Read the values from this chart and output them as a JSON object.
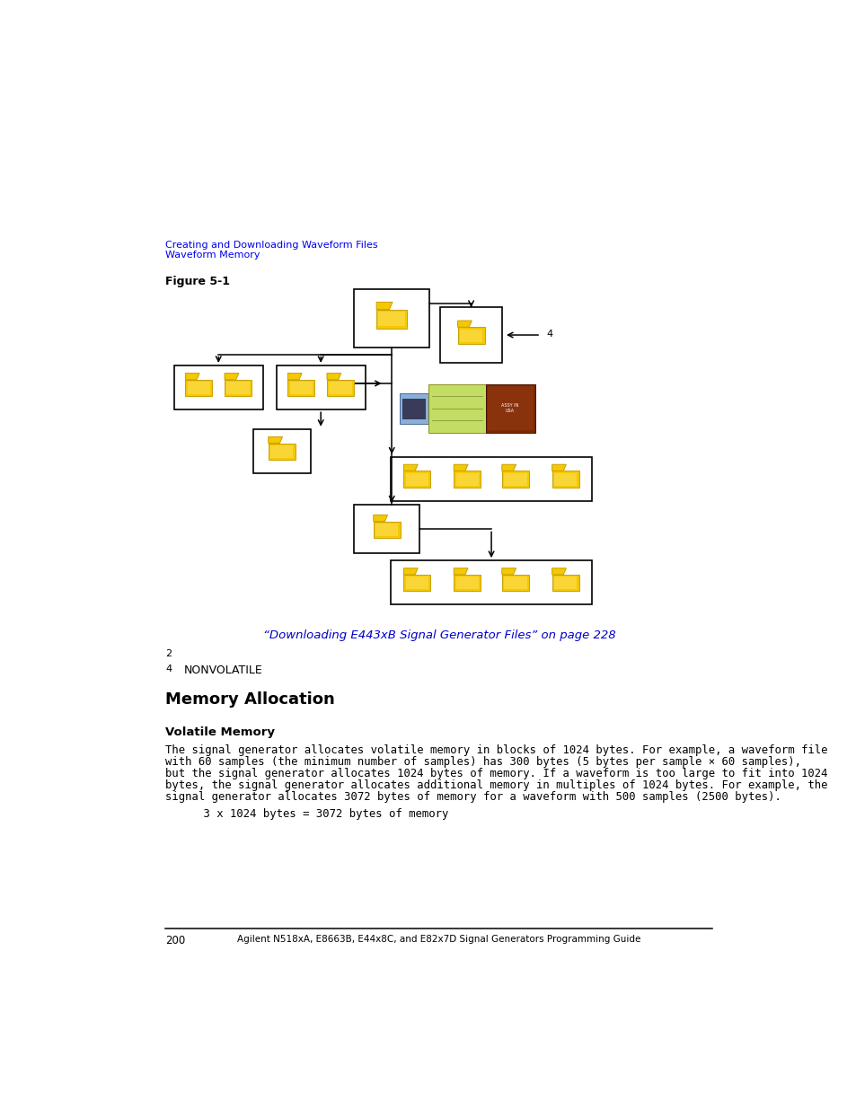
{
  "background_color": "#ffffff",
  "page_width": 9.54,
  "page_height": 12.35,
  "header_link1": "Creating and Downloading Waveform Files",
  "header_link2": "Waveform Memory",
  "header_color": "#0000EE",
  "note2_label": "2",
  "note4_label": "4",
  "note4_text": "NONVOLATILE",
  "link_text": "“Downloading E443xB Signal Generator Files” on page 228",
  "link_color": "#0000CC",
  "figure_label": "Figure 5-1",
  "section_title": "Memory Allocation",
  "subsection_title": "Volatile Memory",
  "body_text_line1": "The signal generator allocates volatile memory in blocks of 1024 bytes. For example, a waveform file",
  "body_text_line2": "with 60 samples (the minimum number of samples) has 300 bytes (5 bytes per sample × 60 samples),",
  "body_text_line3": "but the signal generator allocates 1024 bytes of memory. If a waveform is too large to fit into 1024",
  "body_text_line4": "bytes, the signal generator allocates additional memory in multiples of 1024 bytes. For example, the",
  "body_text_line5": "signal generator allocates 3072 bytes of memory for a waveform with 500 samples (2500 bytes).",
  "code_text": "    3 x 1024 bytes = 3072 bytes of memory",
  "footer_page": "200",
  "footer_text": "Agilent N518xA, E8663B, E44x8C, and E82x7D Signal Generators Programming Guide"
}
